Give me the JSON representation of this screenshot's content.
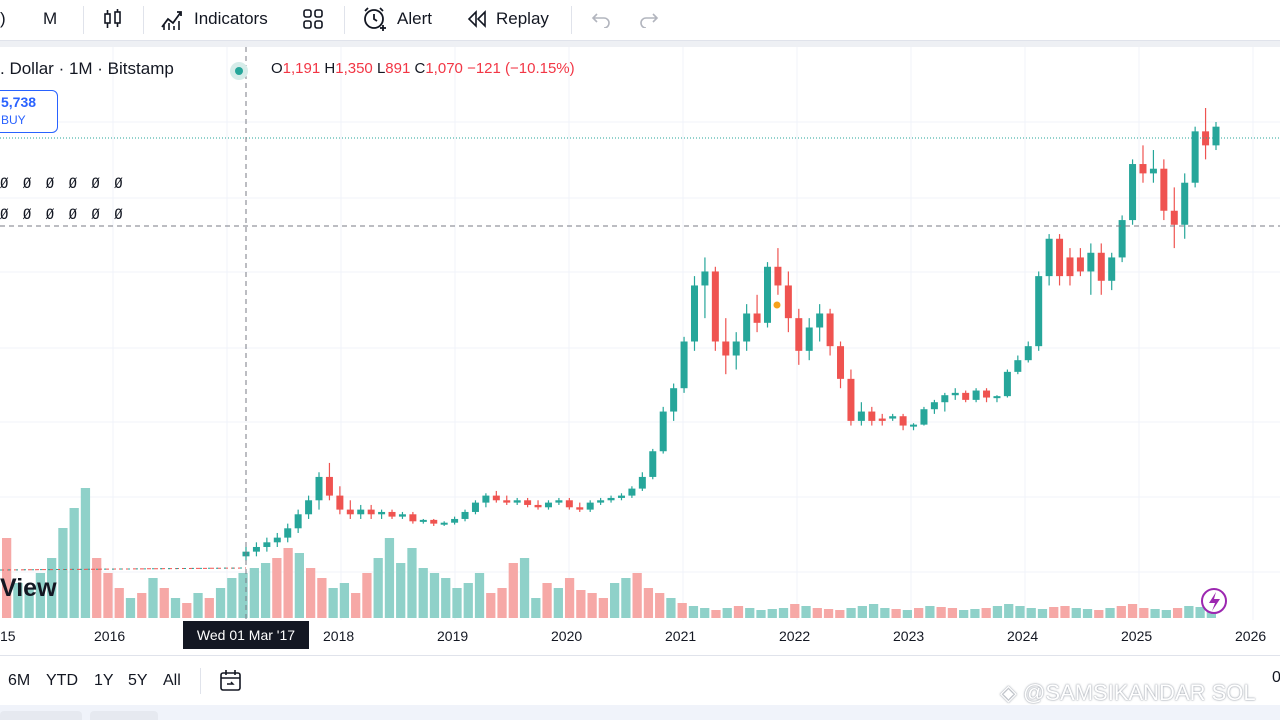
{
  "toolbar": {
    "interval": "M",
    "indicators_label": "Indicators",
    "alert_label": "Alert",
    "replay_label": "Replay"
  },
  "legend": {
    "symbol_text": ". Dollar · 1M · Bitstamp",
    "open_key": "O",
    "open_val": "1,191",
    "high_key": "H",
    "high_val": "1,350",
    "low_key": "L",
    "low_val": "891",
    "close_key": "C",
    "close_val": "1,070",
    "change": "−121 (−10.15%)"
  },
  "buy_box": {
    "price": "5,738",
    "label": "BUY"
  },
  "placeholder_rows": [
    "Ø Ø Ø Ø Ø Ø",
    "Ø Ø Ø Ø Ø Ø"
  ],
  "watermark": "View",
  "xaxis": {
    "labels": [
      "15",
      "2016",
      "2018",
      "2019",
      "2020",
      "2021",
      "2022",
      "2023",
      "2024",
      "2025",
      "2026"
    ],
    "crosshair_label": "Wed 01 Mar '17"
  },
  "ranges": [
    "6M",
    "YTD",
    "1Y",
    "5Y",
    "All"
  ],
  "credit": "@SAMSIKANDAR SOL",
  "colors": {
    "up": "#26a69a",
    "down": "#ef5350",
    "accent": "#2962ff"
  },
  "chart_data": {
    "type": "candlestick",
    "timeframe": "1M",
    "x_axis_ticks": [
      "15",
      "2016",
      "2018",
      "2019",
      "2020",
      "2021",
      "2022",
      "2023",
      "2024",
      "2025",
      "2026"
    ],
    "hover_bar": {
      "date": "Wed 01 Mar '17",
      "open": 1191,
      "high": 1350,
      "low": 891,
      "close": 1070,
      "change": -121,
      "change_pct": -10.15
    },
    "last_price": 5738,
    "series": [
      {
        "name": "c15",
        "dir": "up",
        "o": 0.04,
        "h": 0.06,
        "l": 0.03,
        "c": 0.05
      },
      {
        "name": "c16",
        "dir": "up",
        "o": 0.05,
        "h": 0.07,
        "l": 0.04,
        "c": 0.06
      },
      {
        "name": "c17",
        "dir": "up",
        "o": 0.06,
        "h": 0.08,
        "l": 0.05,
        "c": 0.07
      },
      {
        "name": "c18",
        "dir": "up",
        "o": 0.07,
        "h": 0.09,
        "l": 0.06,
        "c": 0.08
      },
      {
        "name": "c19",
        "dir": "up",
        "o": 0.08,
        "h": 0.11,
        "l": 0.07,
        "c": 0.1
      },
      {
        "name": "c20",
        "dir": "up",
        "o": 0.1,
        "h": 0.14,
        "l": 0.09,
        "c": 0.13
      },
      {
        "name": "c21",
        "dir": "up",
        "o": 0.13,
        "h": 0.17,
        "l": 0.12,
        "c": 0.16
      },
      {
        "name": "c22",
        "dir": "up",
        "o": 0.16,
        "h": 0.22,
        "l": 0.14,
        "c": 0.21
      },
      {
        "name": "c23",
        "dir": "down",
        "o": 0.21,
        "h": 0.24,
        "l": 0.16,
        "c": 0.17
      },
      {
        "name": "c24",
        "dir": "down",
        "o": 0.17,
        "h": 0.19,
        "l": 0.13,
        "c": 0.14
      },
      {
        "name": "c25",
        "dir": "down",
        "o": 0.14,
        "h": 0.16,
        "l": 0.12,
        "c": 0.13
      },
      {
        "name": "c26",
        "dir": "up",
        "o": 0.13,
        "h": 0.15,
        "l": 0.12,
        "c": 0.14
      },
      {
        "name": "c27",
        "dir": "down",
        "o": 0.14,
        "h": 0.15,
        "l": 0.12,
        "c": 0.13
      },
      {
        "name": "c28",
        "dir": "up",
        "o": 0.13,
        "h": 0.14,
        "l": 0.12,
        "c": 0.135
      },
      {
        "name": "c29",
        "dir": "down",
        "o": 0.135,
        "h": 0.14,
        "l": 0.12,
        "c": 0.125
      },
      {
        "name": "c30",
        "dir": "up",
        "o": 0.125,
        "h": 0.135,
        "l": 0.12,
        "c": 0.13
      },
      {
        "name": "c31",
        "dir": "down",
        "o": 0.13,
        "h": 0.135,
        "l": 0.11,
        "c": 0.115
      },
      {
        "name": "c32",
        "dir": "up",
        "o": 0.115,
        "h": 0.12,
        "l": 0.11,
        "c": 0.118
      },
      {
        "name": "c33",
        "dir": "down",
        "o": 0.118,
        "h": 0.12,
        "l": 0.105,
        "c": 0.11
      },
      {
        "name": "c34",
        "dir": "up",
        "o": 0.11,
        "h": 0.115,
        "l": 0.105,
        "c": 0.112
      },
      {
        "name": "c35",
        "dir": "up",
        "o": 0.112,
        "h": 0.125,
        "l": 0.108,
        "c": 0.12
      },
      {
        "name": "c36",
        "dir": "up",
        "o": 0.12,
        "h": 0.14,
        "l": 0.115,
        "c": 0.135
      },
      {
        "name": "c37",
        "dir": "up",
        "o": 0.135,
        "h": 0.16,
        "l": 0.13,
        "c": 0.155
      },
      {
        "name": "c38",
        "dir": "up",
        "o": 0.155,
        "h": 0.175,
        "l": 0.145,
        "c": 0.17
      },
      {
        "name": "c39",
        "dir": "down",
        "o": 0.17,
        "h": 0.18,
        "l": 0.155,
        "c": 0.16
      },
      {
        "name": "c40",
        "dir": "down",
        "o": 0.16,
        "h": 0.17,
        "l": 0.15,
        "c": 0.155
      },
      {
        "name": "c41",
        "dir": "up",
        "o": 0.155,
        "h": 0.165,
        "l": 0.15,
        "c": 0.16
      },
      {
        "name": "c42",
        "dir": "down",
        "o": 0.16,
        "h": 0.165,
        "l": 0.145,
        "c": 0.15
      },
      {
        "name": "c43",
        "dir": "down",
        "o": 0.15,
        "h": 0.16,
        "l": 0.14,
        "c": 0.145
      },
      {
        "name": "c44",
        "dir": "up",
        "o": 0.145,
        "h": 0.16,
        "l": 0.14,
        "c": 0.155
      },
      {
        "name": "c45",
        "dir": "up",
        "o": 0.155,
        "h": 0.165,
        "l": 0.15,
        "c": 0.16
      },
      {
        "name": "c46",
        "dir": "down",
        "o": 0.16,
        "h": 0.165,
        "l": 0.14,
        "c": 0.145
      },
      {
        "name": "c47",
        "dir": "down",
        "o": 0.145,
        "h": 0.155,
        "l": 0.135,
        "c": 0.14
      },
      {
        "name": "c48",
        "dir": "up",
        "o": 0.14,
        "h": 0.16,
        "l": 0.135,
        "c": 0.155
      },
      {
        "name": "c49",
        "dir": "up",
        "o": 0.155,
        "h": 0.165,
        "l": 0.15,
        "c": 0.16
      },
      {
        "name": "c50",
        "dir": "up",
        "o": 0.16,
        "h": 0.17,
        "l": 0.155,
        "c": 0.165
      },
      {
        "name": "c51",
        "dir": "up",
        "o": 0.165,
        "h": 0.175,
        "l": 0.16,
        "c": 0.17
      },
      {
        "name": "c52",
        "dir": "up",
        "o": 0.17,
        "h": 0.19,
        "l": 0.165,
        "c": 0.185
      },
      {
        "name": "c53",
        "dir": "up",
        "o": 0.185,
        "h": 0.22,
        "l": 0.18,
        "c": 0.21
      },
      {
        "name": "c54",
        "dir": "up",
        "o": 0.21,
        "h": 0.27,
        "l": 0.205,
        "c": 0.265
      },
      {
        "name": "c55",
        "dir": "up",
        "o": 0.265,
        "h": 0.36,
        "l": 0.26,
        "c": 0.35
      },
      {
        "name": "c56",
        "dir": "up",
        "o": 0.35,
        "h": 0.41,
        "l": 0.33,
        "c": 0.4
      },
      {
        "name": "c57",
        "dir": "up",
        "o": 0.4,
        "h": 0.51,
        "l": 0.39,
        "c": 0.5
      },
      {
        "name": "c58",
        "dir": "up",
        "o": 0.5,
        "h": 0.64,
        "l": 0.48,
        "c": 0.62
      },
      {
        "name": "c59",
        "dir": "up",
        "o": 0.62,
        "h": 0.68,
        "l": 0.55,
        "c": 0.65
      },
      {
        "name": "c60",
        "dir": "down",
        "o": 0.65,
        "h": 0.66,
        "l": 0.48,
        "c": 0.5
      },
      {
        "name": "c61",
        "dir": "down",
        "o": 0.5,
        "h": 0.55,
        "l": 0.43,
        "c": 0.47
      },
      {
        "name": "c62",
        "dir": "up",
        "o": 0.47,
        "h": 0.52,
        "l": 0.44,
        "c": 0.5
      },
      {
        "name": "c63",
        "dir": "up",
        "o": 0.5,
        "h": 0.58,
        "l": 0.48,
        "c": 0.56
      },
      {
        "name": "c64",
        "dir": "down",
        "o": 0.56,
        "h": 0.6,
        "l": 0.52,
        "c": 0.54
      },
      {
        "name": "c65",
        "dir": "up",
        "o": 0.54,
        "h": 0.67,
        "l": 0.53,
        "c": 0.66
      },
      {
        "name": "c66",
        "dir": "down",
        "o": 0.66,
        "h": 0.7,
        "l": 0.6,
        "c": 0.62
      },
      {
        "name": "c67",
        "dir": "down",
        "o": 0.62,
        "h": 0.65,
        "l": 0.52,
        "c": 0.55
      },
      {
        "name": "c68",
        "dir": "down",
        "o": 0.55,
        "h": 0.57,
        "l": 0.45,
        "c": 0.48
      },
      {
        "name": "c69",
        "dir": "up",
        "o": 0.48,
        "h": 0.55,
        "l": 0.46,
        "c": 0.53
      },
      {
        "name": "c70",
        "dir": "up",
        "o": 0.53,
        "h": 0.58,
        "l": 0.5,
        "c": 0.56
      },
      {
        "name": "c71",
        "dir": "down",
        "o": 0.56,
        "h": 0.57,
        "l": 0.47,
        "c": 0.49
      },
      {
        "name": "c72",
        "dir": "down",
        "o": 0.49,
        "h": 0.5,
        "l": 0.4,
        "c": 0.42
      },
      {
        "name": "c73",
        "dir": "down",
        "o": 0.42,
        "h": 0.44,
        "l": 0.32,
        "c": 0.33
      },
      {
        "name": "c74",
        "dir": "up",
        "o": 0.33,
        "h": 0.37,
        "l": 0.32,
        "c": 0.35
      },
      {
        "name": "c75",
        "dir": "down",
        "o": 0.35,
        "h": 0.36,
        "l": 0.32,
        "c": 0.33
      },
      {
        "name": "c76",
        "dir": "down",
        "o": 0.33,
        "h": 0.345,
        "l": 0.32,
        "c": 0.335
      },
      {
        "name": "c77",
        "dir": "up",
        "o": 0.335,
        "h": 0.345,
        "l": 0.33,
        "c": 0.34
      },
      {
        "name": "c78",
        "dir": "down",
        "o": 0.34,
        "h": 0.345,
        "l": 0.31,
        "c": 0.32
      },
      {
        "name": "c79",
        "dir": "up",
        "o": 0.32,
        "h": 0.325,
        "l": 0.31,
        "c": 0.322
      },
      {
        "name": "c80",
        "dir": "up",
        "o": 0.322,
        "h": 0.36,
        "l": 0.32,
        "c": 0.355
      },
      {
        "name": "c81",
        "dir": "up",
        "o": 0.355,
        "h": 0.375,
        "l": 0.345,
        "c": 0.37
      },
      {
        "name": "c82",
        "dir": "up",
        "o": 0.37,
        "h": 0.39,
        "l": 0.35,
        "c": 0.385
      },
      {
        "name": "c83",
        "dir": "up",
        "o": 0.385,
        "h": 0.4,
        "l": 0.375,
        "c": 0.39
      },
      {
        "name": "c84",
        "dir": "down",
        "o": 0.39,
        "h": 0.395,
        "l": 0.37,
        "c": 0.375
      },
      {
        "name": "c85",
        "dir": "up",
        "o": 0.375,
        "h": 0.4,
        "l": 0.37,
        "c": 0.395
      },
      {
        "name": "c86",
        "dir": "down",
        "o": 0.395,
        "h": 0.4,
        "l": 0.37,
        "c": 0.38
      },
      {
        "name": "c87",
        "dir": "up",
        "o": 0.38,
        "h": 0.385,
        "l": 0.37,
        "c": 0.383
      },
      {
        "name": "c88",
        "dir": "up",
        "o": 0.383,
        "h": 0.44,
        "l": 0.38,
        "c": 0.435
      },
      {
        "name": "c89",
        "dir": "up",
        "o": 0.435,
        "h": 0.47,
        "l": 0.43,
        "c": 0.46
      },
      {
        "name": "c90",
        "dir": "up",
        "o": 0.46,
        "h": 0.5,
        "l": 0.455,
        "c": 0.49
      },
      {
        "name": "c91",
        "dir": "up",
        "o": 0.49,
        "h": 0.65,
        "l": 0.48,
        "c": 0.64
      },
      {
        "name": "c92",
        "dir": "up",
        "o": 0.64,
        "h": 0.73,
        "l": 0.62,
        "c": 0.72
      },
      {
        "name": "c93",
        "dir": "down",
        "o": 0.72,
        "h": 0.73,
        "l": 0.62,
        "c": 0.64
      },
      {
        "name": "c94",
        "dir": "down",
        "o": 0.64,
        "h": 0.7,
        "l": 0.62,
        "c": 0.68
      },
      {
        "name": "c95",
        "dir": "down",
        "o": 0.68,
        "h": 0.7,
        "l": 0.64,
        "c": 0.65
      },
      {
        "name": "c96",
        "dir": "up",
        "o": 0.65,
        "h": 0.71,
        "l": 0.6,
        "c": 0.69
      },
      {
        "name": "c97",
        "dir": "down",
        "o": 0.69,
        "h": 0.71,
        "l": 0.6,
        "c": 0.63
      },
      {
        "name": "c98",
        "dir": "up",
        "o": 0.63,
        "h": 0.69,
        "l": 0.61,
        "c": 0.68
      },
      {
        "name": "c99",
        "dir": "up",
        "o": 0.68,
        "h": 0.77,
        "l": 0.67,
        "c": 0.76
      },
      {
        "name": "c100",
        "dir": "up",
        "o": 0.76,
        "h": 0.89,
        "l": 0.75,
        "c": 0.88
      },
      {
        "name": "c101",
        "dir": "down",
        "o": 0.88,
        "h": 0.92,
        "l": 0.84,
        "c": 0.86
      },
      {
        "name": "c102",
        "dir": "up",
        "o": 0.86,
        "h": 0.91,
        "l": 0.84,
        "c": 0.87
      },
      {
        "name": "c103",
        "dir": "down",
        "o": 0.87,
        "h": 0.89,
        "l": 0.76,
        "c": 0.78
      },
      {
        "name": "c104",
        "dir": "down",
        "o": 0.78,
        "h": 0.83,
        "l": 0.7,
        "c": 0.75
      },
      {
        "name": "c105",
        "dir": "up",
        "o": 0.75,
        "h": 0.86,
        "l": 0.72,
        "c": 0.84
      },
      {
        "name": "c106",
        "dir": "up",
        "o": 0.84,
        "h": 0.96,
        "l": 0.83,
        "c": 0.95
      },
      {
        "name": "c107",
        "dir": "down",
        "o": 0.95,
        "h": 1.0,
        "l": 0.89,
        "c": 0.92
      },
      {
        "name": "c108",
        "dir": "up",
        "o": 0.92,
        "h": 0.97,
        "l": 0.91,
        "c": 0.96
      }
    ],
    "volume": "relative per-bar volume shown beneath candles"
  }
}
